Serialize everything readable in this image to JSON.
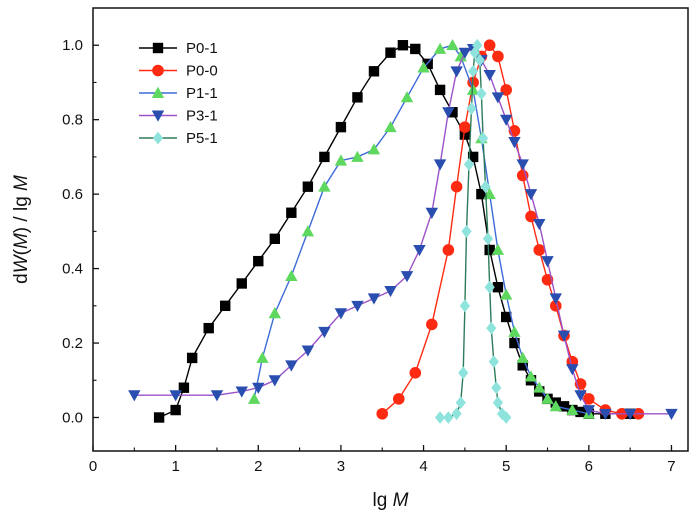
{
  "chart_data": {
    "type": "line",
    "xlabel": "lg M",
    "ylabel": "dW(M) / lg M",
    "xlim": [
      0,
      7.2
    ],
    "ylim": [
      -0.09,
      1.1
    ],
    "xticks": [
      0,
      1,
      2,
      3,
      4,
      5,
      6,
      7
    ],
    "yticks": [
      0.0,
      0.2,
      0.4,
      0.6,
      0.8,
      1.0
    ],
    "xtick_labels": [
      "0",
      "1",
      "2",
      "3",
      "4",
      "5",
      "6",
      "7"
    ],
    "ytick_labels": [
      "0.0",
      "0.2",
      "0.4",
      "0.6",
      "0.8",
      "1.0"
    ],
    "grid": false,
    "legend_position": "top-left",
    "series": [
      {
        "name": "P0-1",
        "color": "#000000",
        "marker": "square",
        "x": [
          0.8,
          1.0,
          1.1,
          1.2,
          1.4,
          1.6,
          1.8,
          2.0,
          2.2,
          2.4,
          2.6,
          2.8,
          3.0,
          3.2,
          3.4,
          3.6,
          3.75,
          3.9,
          4.05,
          4.2,
          4.35,
          4.5,
          4.6,
          4.7,
          4.8,
          4.9,
          5.0,
          5.1,
          5.2,
          5.3,
          5.4,
          5.5,
          5.6,
          5.7,
          5.8,
          5.9,
          6.0,
          6.2,
          6.5
        ],
        "y": [
          0.0,
          0.02,
          0.08,
          0.16,
          0.24,
          0.3,
          0.36,
          0.42,
          0.48,
          0.55,
          0.62,
          0.7,
          0.78,
          0.86,
          0.93,
          0.98,
          1.0,
          0.99,
          0.95,
          0.88,
          0.82,
          0.76,
          0.7,
          0.6,
          0.45,
          0.35,
          0.27,
          0.2,
          0.14,
          0.1,
          0.07,
          0.05,
          0.04,
          0.03,
          0.02,
          0.015,
          0.01,
          0.01,
          0.01
        ]
      },
      {
        "name": "P0-0",
        "color": "#ff2a12",
        "marker": "circle",
        "x": [
          3.5,
          3.7,
          3.9,
          4.1,
          4.3,
          4.4,
          4.5,
          4.6,
          4.7,
          4.8,
          4.9,
          5.0,
          5.1,
          5.2,
          5.3,
          5.4,
          5.5,
          5.6,
          5.7,
          5.8,
          5.9,
          6.0,
          6.2,
          6.4,
          6.6
        ],
        "y": [
          0.01,
          0.05,
          0.12,
          0.25,
          0.45,
          0.62,
          0.78,
          0.9,
          0.97,
          1.0,
          0.97,
          0.88,
          0.77,
          0.65,
          0.54,
          0.45,
          0.37,
          0.3,
          0.22,
          0.15,
          0.09,
          0.05,
          0.02,
          0.01,
          0.01
        ]
      },
      {
        "name": "P1-1",
        "color": "#3d6bd8",
        "marker": "triangle-up",
        "markerColor": "#5ed85e",
        "x": [
          1.95,
          2.05,
          2.2,
          2.4,
          2.6,
          2.8,
          3.0,
          3.2,
          3.4,
          3.6,
          3.8,
          4.0,
          4.2,
          4.35,
          4.45,
          4.6,
          4.7,
          4.8,
          4.9,
          5.0,
          5.1,
          5.2,
          5.3,
          5.4,
          5.5,
          5.6,
          5.8,
          6.0
        ],
        "y": [
          0.05,
          0.16,
          0.28,
          0.38,
          0.5,
          0.62,
          0.69,
          0.7,
          0.72,
          0.78,
          0.86,
          0.94,
          0.99,
          1.0,
          0.97,
          0.88,
          0.75,
          0.6,
          0.45,
          0.33,
          0.23,
          0.16,
          0.11,
          0.08,
          0.05,
          0.03,
          0.02,
          0.01
        ]
      },
      {
        "name": "P3-1",
        "color": "#9a52c8",
        "marker": "triangle-down",
        "markerColor": "#2a4eb0",
        "x": [
          0.5,
          1.0,
          1.5,
          1.8,
          2.0,
          2.2,
          2.4,
          2.6,
          2.8,
          3.0,
          3.2,
          3.4,
          3.6,
          3.8,
          3.95,
          4.1,
          4.2,
          4.3,
          4.4,
          4.5,
          4.6,
          4.7,
          4.8,
          4.9,
          5.0,
          5.1,
          5.2,
          5.3,
          5.4,
          5.5,
          5.6,
          5.7,
          5.8,
          5.9,
          6.0,
          6.2,
          6.5,
          7.0
        ],
        "y": [
          0.06,
          0.06,
          0.06,
          0.07,
          0.08,
          0.1,
          0.14,
          0.18,
          0.23,
          0.28,
          0.3,
          0.32,
          0.34,
          0.38,
          0.45,
          0.55,
          0.68,
          0.82,
          0.93,
          0.98,
          0.99,
          0.96,
          0.92,
          0.86,
          0.8,
          0.74,
          0.68,
          0.6,
          0.52,
          0.42,
          0.32,
          0.22,
          0.13,
          0.06,
          0.02,
          0.01,
          0.01,
          0.01
        ]
      },
      {
        "name": "P5-1",
        "color": "#2d7b5a",
        "marker": "diamond",
        "markerColor": "#8fe3dd",
        "x": [
          4.2,
          4.3,
          4.4,
          4.45,
          4.48,
          4.5,
          4.52,
          4.55,
          4.58,
          4.6,
          4.62,
          4.65,
          4.68,
          4.7,
          4.72,
          4.75,
          4.78,
          4.8,
          4.82,
          4.85,
          4.88,
          4.9,
          4.95,
          5.0
        ],
        "y": [
          0.0,
          0.0,
          0.01,
          0.04,
          0.12,
          0.3,
          0.5,
          0.68,
          0.83,
          0.93,
          0.98,
          1.0,
          0.96,
          0.87,
          0.75,
          0.62,
          0.48,
          0.35,
          0.24,
          0.15,
          0.08,
          0.04,
          0.01,
          0.0
        ]
      }
    ]
  }
}
